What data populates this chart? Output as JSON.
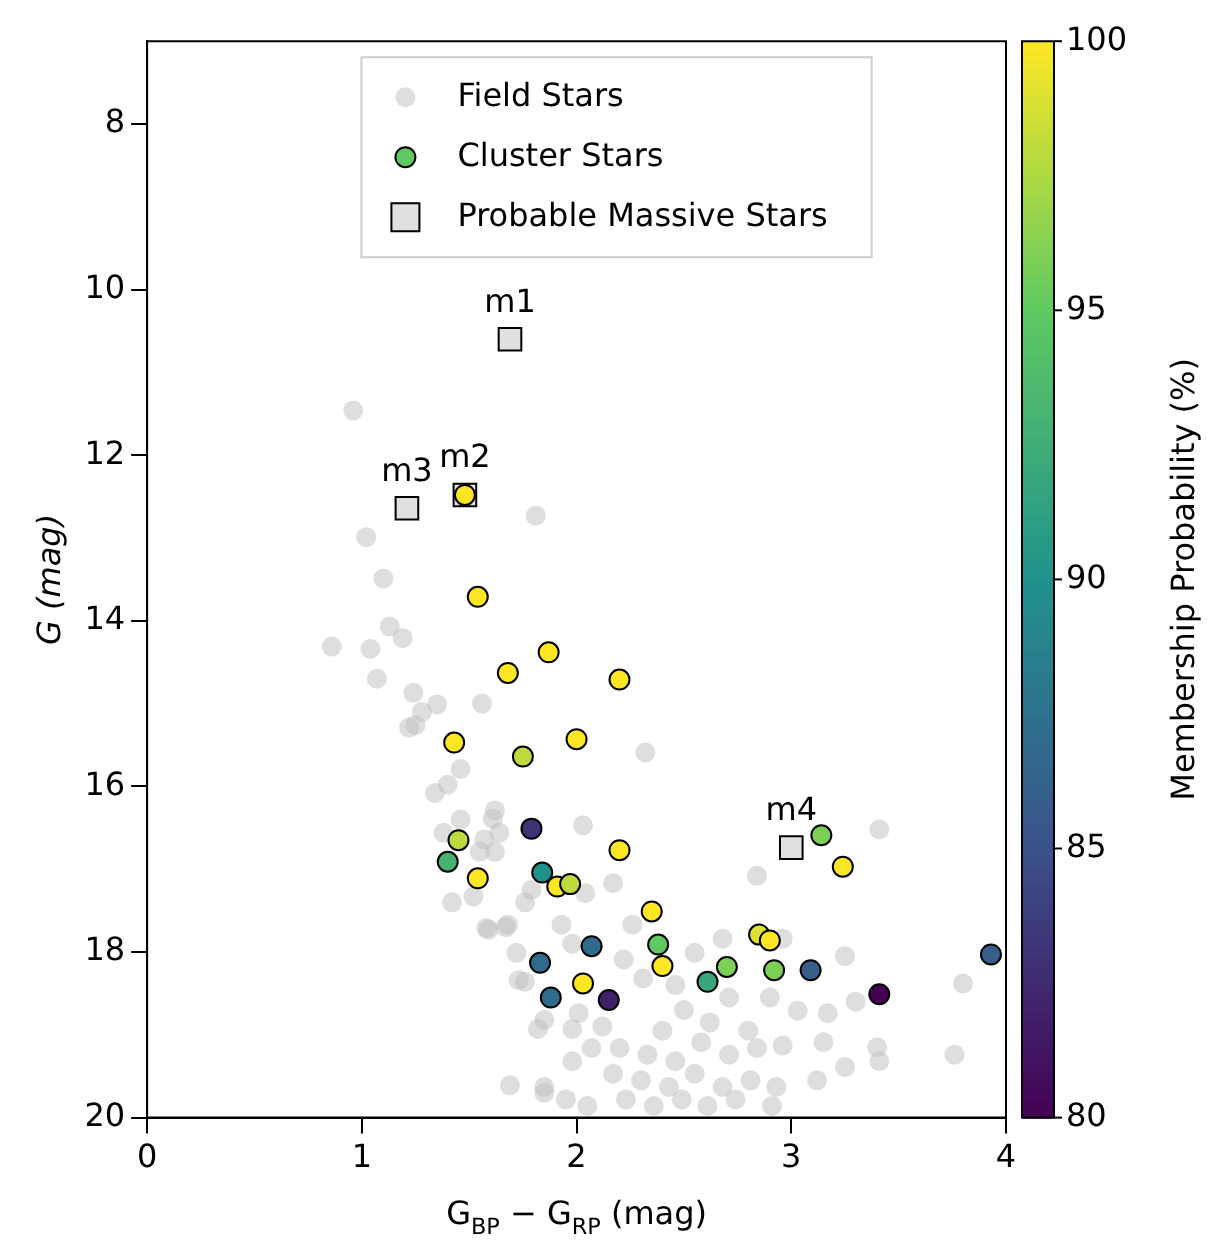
{
  "chart_data": {
    "type": "scatter",
    "xlabel": "G$_{BP}$ − G$_{RP}$ (mag)",
    "ylabel": "G (mag)",
    "clabel": "Membership Probability (%)",
    "xlim": [
      0,
      4
    ],
    "xticks": [
      0,
      1,
      2,
      3,
      4
    ],
    "ylim": [
      20,
      7
    ],
    "yticks": [
      8,
      10,
      12,
      14,
      16,
      18,
      20
    ],
    "clim": [
      80,
      100
    ],
    "cticks": [
      80,
      85,
      90,
      95,
      100
    ],
    "legend": "top",
    "grid": false,
    "series": [
      {
        "name": "Field Stars",
        "marker": "circle",
        "color": "#bdbdbd",
        "x": [
          0.96,
          1.81,
          1.02,
          1.1,
          1.13,
          1.19,
          0.86,
          1.04,
          1.07,
          1.24,
          1.28,
          1.35,
          1.22,
          1.56,
          2.32,
          1.46,
          1.4,
          1.34,
          1.46,
          1.62,
          2.03,
          1.25,
          1.61,
          1.64,
          1.62,
          1.57,
          1.42,
          1.52,
          1.58,
          1.68,
          1.76,
          1.79,
          2.04,
          2.17,
          1.93,
          1.98,
          2.26,
          1.72,
          1.76,
          2.22,
          2.55,
          2.68,
          2.84,
          2.96,
          3.25,
          3.41,
          3.8,
          3.76,
          2.31,
          2.46,
          2.9,
          3.03,
          3.17,
          2.71,
          2.01,
          1.85,
          1.98,
          2.2,
          2.33,
          2.46,
          2.58,
          2.71,
          2.84,
          2.96,
          3.15,
          3.25,
          3.41,
          3.12,
          2.17,
          2.3,
          2.43,
          2.55,
          2.68,
          2.81,
          2.93,
          2.23,
          2.36,
          2.49,
          2.61,
          2.74,
          2.91,
          1.98,
          2.07,
          1.85,
          1.95,
          2.05,
          1.38,
          1.55,
          1.59,
          1.67,
          1.73,
          1.82,
          1.85,
          1.69,
          3.4,
          2.12,
          2.4,
          2.62,
          2.8,
          3.3,
          2.5
        ],
        "values": [
          11.46,
          12.73,
          12.99,
          13.49,
          14.07,
          14.21,
          14.31,
          14.34,
          14.7,
          14.87,
          15.1,
          15.01,
          15.29,
          15.0,
          15.59,
          15.79,
          15.98,
          16.08,
          16.4,
          16.29,
          16.47,
          15.26,
          16.39,
          16.56,
          16.79,
          16.64,
          17.4,
          17.33,
          17.71,
          17.67,
          17.4,
          17.25,
          17.29,
          17.17,
          17.67,
          17.9,
          17.67,
          18.01,
          18.36,
          18.09,
          18.01,
          17.84,
          17.08,
          17.84,
          18.05,
          16.52,
          18.38,
          19.24,
          18.32,
          18.4,
          18.55,
          18.71,
          18.74,
          18.55,
          18.74,
          18.82,
          18.93,
          19.16,
          19.24,
          19.32,
          19.09,
          19.24,
          19.16,
          19.13,
          19.09,
          19.39,
          19.32,
          19.55,
          19.47,
          19.55,
          19.63,
          19.47,
          19.63,
          19.55,
          19.63,
          19.78,
          19.86,
          19.78,
          19.86,
          19.78,
          19.86,
          19.32,
          19.16,
          19.63,
          19.78,
          19.86,
          16.56,
          16.79,
          17.73,
          17.7,
          18.34,
          18.93,
          19.7,
          19.61,
          19.15,
          18.9,
          18.95,
          18.85,
          18.95,
          18.6,
          18.7
        ]
      },
      {
        "name": "Cluster Stars",
        "marker": "circle",
        "x": [
          1.48,
          1.54,
          1.87,
          1.68,
          2.2,
          1.43,
          1.75,
          2.0,
          1.79,
          1.45,
          1.4,
          1.54,
          1.84,
          1.91,
          1.97,
          2.2,
          2.35,
          2.07,
          2.38,
          1.83,
          2.4,
          2.7,
          2.61,
          2.85,
          2.9,
          2.92,
          3.09,
          3.14,
          3.24,
          3.93,
          3.41,
          1.88,
          2.03,
          2.15
        ],
        "values": [
          12.48,
          13.71,
          14.38,
          14.63,
          14.71,
          15.47,
          15.64,
          15.43,
          16.51,
          16.65,
          16.91,
          17.11,
          17.04,
          17.21,
          17.18,
          16.77,
          17.51,
          17.93,
          17.91,
          18.13,
          18.17,
          18.18,
          18.36,
          17.79,
          17.86,
          18.22,
          18.22,
          16.59,
          16.97,
          18.03,
          18.51,
          18.55,
          18.38,
          18.58
        ],
        "cvalues": [
          100,
          100,
          100,
          100,
          100,
          100,
          98,
          100,
          83,
          98,
          93,
          100,
          90,
          100,
          98,
          100,
          100,
          87,
          95,
          87,
          100,
          96,
          92,
          99,
          100,
          96,
          86,
          96,
          100,
          86,
          80,
          87,
          100,
          82
        ],
        "colors": [
          "#fde725",
          "#fde725",
          "#fde725",
          "#fde725",
          "#fde725",
          "#fde725",
          "#bddb3d",
          "#fde725",
          "#3f3275",
          "#bddb3d",
          "#46b373",
          "#fde725",
          "#21918c",
          "#fde725",
          "#bddb3d",
          "#fde725",
          "#fde725",
          "#316b8b",
          "#5ec962",
          "#316b8b",
          "#fde725",
          "#7ecf56",
          "#39a77b",
          "#dde131",
          "#fde725",
          "#7ecf56",
          "#365f8b",
          "#7ecf56",
          "#fde725",
          "#365f8b",
          "#440154",
          "#316b8b",
          "#fde725",
          "#40216a"
        ]
      },
      {
        "name": "Probable Massive Stars",
        "marker": "square",
        "color": "#e0e0e0",
        "x": [
          1.69,
          1.48,
          1.21,
          3.0
        ],
        "values": [
          10.6,
          12.48,
          12.64,
          16.74
        ]
      }
    ],
    "annotations": [
      {
        "text": "m1",
        "x": 1.69,
        "y": 10.6
      },
      {
        "text": "m2",
        "x": 1.48,
        "y": 12.48
      },
      {
        "text": "m3",
        "x": 1.21,
        "y": 12.64
      },
      {
        "text": "m4",
        "x": 3.0,
        "y": 16.74
      }
    ]
  }
}
